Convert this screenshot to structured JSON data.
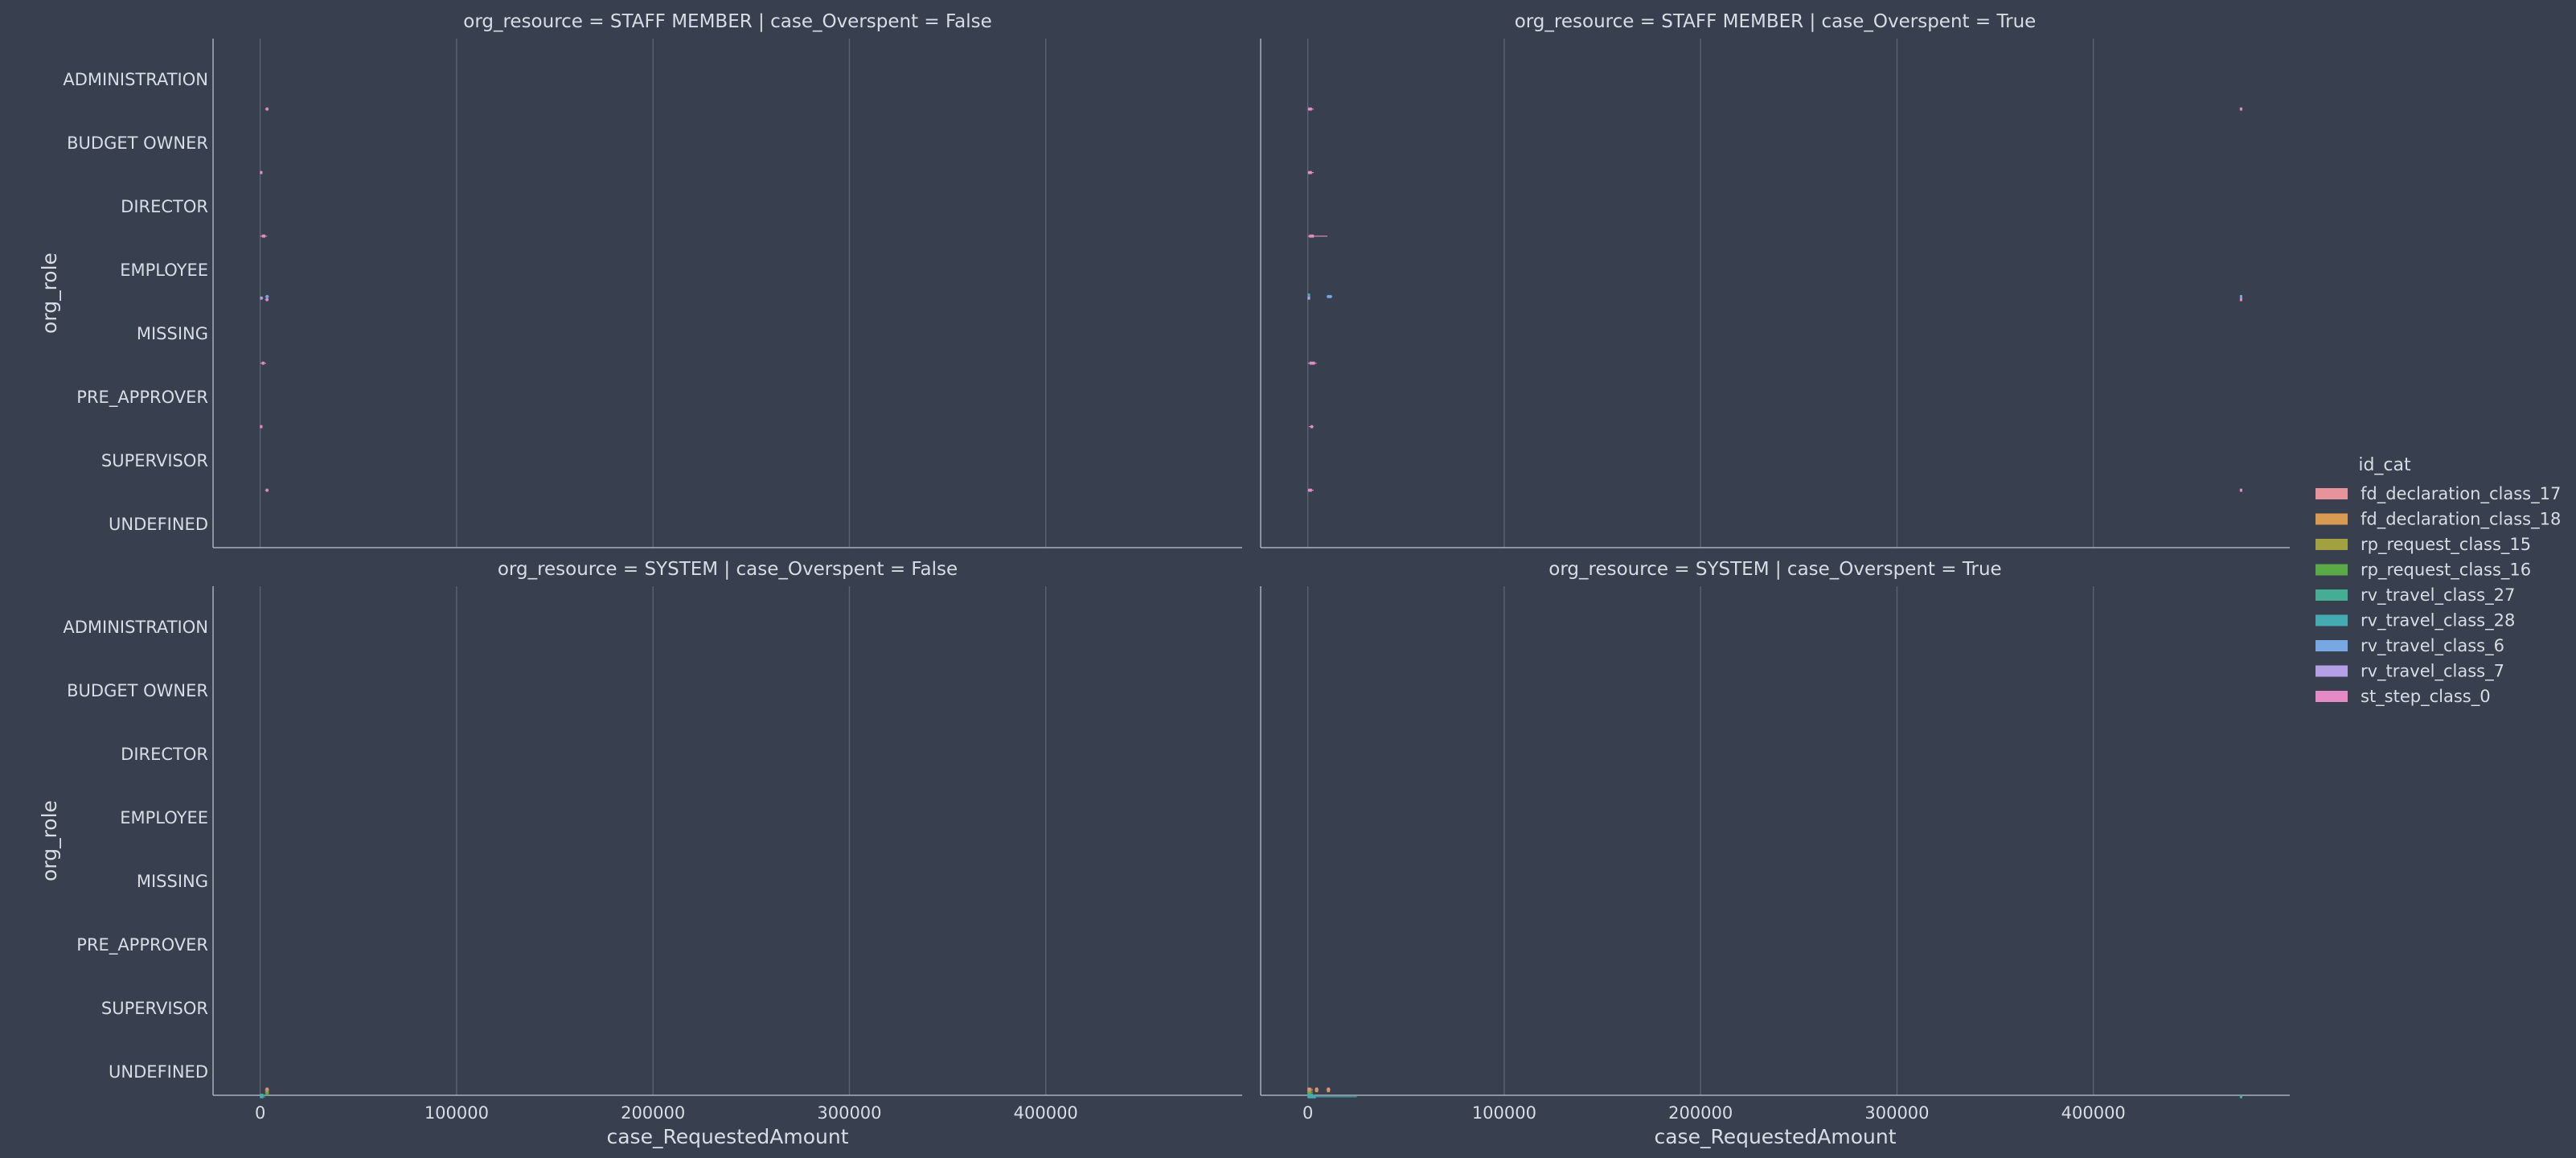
{
  "chart_data": {
    "type": "boxplot",
    "x_variable": "case_RequestedAmount",
    "y_variable": "org_role",
    "hue_variable": "id_cat",
    "xlim": [
      -24000,
      500000
    ],
    "xticks": [
      0,
      100000,
      200000,
      300000,
      400000
    ],
    "xtick_labels": [
      "0",
      "100000",
      "200000",
      "300000",
      "400000"
    ],
    "grid": "vertical",
    "roles": [
      "ADMINISTRATION",
      "BUDGET OWNER",
      "DIRECTOR",
      "EMPLOYEE",
      "MISSING",
      "PRE_APPROVER",
      "SUPERVISOR",
      "UNDEFINED"
    ],
    "legend": {
      "title": "id_cat",
      "placement": "right",
      "entries": [
        {
          "label": "fd_declaration_class_17",
          "color": "#e8929c"
        },
        {
          "label": "fd_declaration_class_18",
          "color": "#d99a52"
        },
        {
          "label": "rp_request_class_15",
          "color": "#a2a142"
        },
        {
          "label": "rp_request_class_16",
          "color": "#5aaa48"
        },
        {
          "label": "rv_travel_class_27",
          "color": "#45ad94"
        },
        {
          "label": "rv_travel_class_28",
          "color": "#44abb3"
        },
        {
          "label": "rv_travel_class_6",
          "color": "#77a8e3"
        },
        {
          "label": "rv_travel_class_7",
          "color": "#b3a0e6"
        },
        {
          "label": "st_step_class_0",
          "color": "#e48bc6"
        }
      ]
    },
    "panels": [
      {
        "title": "org_resource = STAFF MEMBER | case_Overspent = False",
        "row": 0,
        "col": 0,
        "ylabel": "org_role",
        "xlabel": "",
        "groups": [
          {
            "role": "ADMINISTRATION",
            "hue": "st_step_class_0",
            "box": [
              3000,
              3500,
              4000
            ],
            "whiskers": [
              2500,
              4300
            ]
          },
          {
            "role": "BUDGET OWNER",
            "hue": "st_step_class_0",
            "box": [
              400,
              500,
              600
            ],
            "whiskers": [
              300,
              700
            ]
          },
          {
            "role": "DIRECTOR",
            "hue": "st_step_class_0",
            "box": [
              1000,
              1500,
              2500
            ],
            "whiskers": [
              0,
              3500
            ]
          },
          {
            "role": "EMPLOYEE",
            "hue": "rv_travel_class_6",
            "box": [
              3000,
              3500,
              4000
            ],
            "whiskers": [
              2500,
              4500
            ]
          },
          {
            "role": "EMPLOYEE",
            "hue": "rv_travel_class_7",
            "box": [
              400,
              600,
              800
            ],
            "whiskers": [
              300,
              1500
            ]
          },
          {
            "role": "EMPLOYEE",
            "hue": "st_step_class_0",
            "box": [
              3000,
              3500,
              4000
            ],
            "whiskers": [
              2500,
              4300
            ]
          },
          {
            "role": "MISSING",
            "hue": "st_step_class_0",
            "box": [
              1000,
              1500,
              2000
            ],
            "whiskers": [
              0,
              3000
            ]
          },
          {
            "role": "PRE_APPROVER",
            "hue": "st_step_class_0",
            "box": [
              400,
              500,
              600
            ],
            "whiskers": [
              300,
              700
            ]
          },
          {
            "role": "SUPERVISOR",
            "hue": "st_step_class_0",
            "box": [
              3000,
              3500,
              4000
            ],
            "whiskers": [
              2500,
              4300
            ]
          }
        ]
      },
      {
        "title": "org_resource = STAFF MEMBER | case_Overspent = True",
        "row": 0,
        "col": 1,
        "ylabel": "",
        "xlabel": "",
        "groups": [
          {
            "role": "ADMINISTRATION",
            "hue": "st_step_class_0",
            "box": [
              300,
              800,
              2000
            ],
            "whiskers": [
              0,
              3000
            ]
          },
          {
            "role": "ADMINISTRATION",
            "hue": "st_step_class_0",
            "box": [
              475000,
              475200,
              475400
            ],
            "whiskers": [
              474800,
              475600
            ]
          },
          {
            "role": "BUDGET OWNER",
            "hue": "st_step_class_0",
            "box": [
              300,
              800,
              2000
            ],
            "whiskers": [
              0,
              3000
            ]
          },
          {
            "role": "DIRECTOR",
            "hue": "st_step_class_0",
            "box": [
              800,
              1500,
              3000
            ],
            "whiskers": [
              0,
              10000
            ]
          },
          {
            "role": "EMPLOYEE",
            "hue": "rv_travel_class_28",
            "box": [
              300,
              500,
              800
            ],
            "whiskers": [
              0,
              1200
            ]
          },
          {
            "role": "EMPLOYEE",
            "hue": "rv_travel_class_6",
            "box": [
              10000,
              11000,
              12000
            ],
            "whiskers": [
              9500,
              12500
            ]
          },
          {
            "role": "EMPLOYEE",
            "hue": "rv_travel_class_6",
            "box": [
              475000,
              475200,
              475400
            ],
            "whiskers": [
              474800,
              475600
            ]
          },
          {
            "role": "EMPLOYEE",
            "hue": "rv_travel_class_7",
            "box": [
              300,
              500,
              800
            ],
            "whiskers": [
              0,
              1200
            ]
          },
          {
            "role": "EMPLOYEE",
            "hue": "st_step_class_0",
            "box": [
              475000,
              475200,
              475400
            ],
            "whiskers": [
              474800,
              475600
            ]
          },
          {
            "role": "MISSING",
            "hue": "st_step_class_0",
            "box": [
              1000,
              2000,
              3500
            ],
            "whiskers": [
              0,
              4500
            ]
          },
          {
            "role": "PRE_APPROVER",
            "hue": "st_step_class_0",
            "box": [
              1500,
              2000,
              2500
            ],
            "whiskers": [
              500,
              3000
            ]
          },
          {
            "role": "SUPERVISOR",
            "hue": "st_step_class_0",
            "box": [
              300,
              800,
              2000
            ],
            "whiskers": [
              0,
              3000
            ]
          },
          {
            "role": "SUPERVISOR",
            "hue": "st_step_class_0",
            "box": [
              475000,
              475200,
              475400
            ],
            "whiskers": [
              474800,
              475600
            ]
          }
        ]
      },
      {
        "title": "org_resource = SYSTEM | case_Overspent = False",
        "row": 1,
        "col": 0,
        "ylabel": "org_role",
        "xlabel": "case_RequestedAmount",
        "groups": [
          {
            "role": "UNDEFINED",
            "hue": "fd_declaration_class_17",
            "box": [
              3000,
              3500,
              4000
            ],
            "whiskers": [
              2500,
              4500
            ]
          },
          {
            "role": "UNDEFINED",
            "hue": "fd_declaration_class_18",
            "box": [
              3000,
              3500,
              4000
            ],
            "whiskers": [
              2500,
              4500
            ]
          },
          {
            "role": "UNDEFINED",
            "hue": "rp_request_class_15",
            "box": [
              3000,
              3500,
              4000
            ],
            "whiskers": [
              2500,
              4500
            ]
          },
          {
            "role": "UNDEFINED",
            "hue": "rp_request_class_16",
            "box": [
              3000,
              3500,
              4000
            ],
            "whiskers": [
              2500,
              4500
            ]
          },
          {
            "role": "UNDEFINED",
            "hue": "rv_travel_class_27",
            "box": [
              0,
              500,
              1500
            ],
            "whiskers": [
              0,
              2500
            ]
          },
          {
            "role": "UNDEFINED",
            "hue": "rv_travel_class_28",
            "box": [
              0,
              500,
              1500
            ],
            "whiskers": [
              0,
              2500
            ]
          }
        ]
      },
      {
        "title": "org_resource = SYSTEM | case_Overspent = True",
        "row": 1,
        "col": 1,
        "ylabel": "",
        "xlabel": "case_RequestedAmount",
        "groups": [
          {
            "role": "UNDEFINED",
            "hue": "fd_declaration_class_17",
            "box": [
              0,
              500,
              1500
            ],
            "whiskers": [
              0,
              2500
            ]
          },
          {
            "role": "UNDEFINED",
            "hue": "fd_declaration_class_17",
            "box": [
              4000,
              4500,
              5000
            ],
            "whiskers": [
              3500,
              5500
            ]
          },
          {
            "role": "UNDEFINED",
            "hue": "fd_declaration_class_17",
            "box": [
              10000,
              10500,
              11000
            ],
            "whiskers": [
              9500,
              11500
            ]
          },
          {
            "role": "UNDEFINED",
            "hue": "fd_declaration_class_18",
            "box": [
              0,
              500,
              1500
            ],
            "whiskers": [
              0,
              2500
            ]
          },
          {
            "role": "UNDEFINED",
            "hue": "fd_declaration_class_18",
            "box": [
              4000,
              4500,
              5000
            ],
            "whiskers": [
              3500,
              5500
            ]
          },
          {
            "role": "UNDEFINED",
            "hue": "fd_declaration_class_18",
            "box": [
              10000,
              10500,
              11000
            ],
            "whiskers": [
              9500,
              11500
            ]
          },
          {
            "role": "UNDEFINED",
            "hue": "rp_request_class_15",
            "box": [
              0,
              500,
              1500
            ],
            "whiskers": [
              0,
              2500
            ]
          },
          {
            "role": "UNDEFINED",
            "hue": "rp_request_class_16",
            "box": [
              0,
              500,
              1500
            ],
            "whiskers": [
              0,
              2500
            ]
          },
          {
            "role": "UNDEFINED",
            "hue": "rv_travel_class_27",
            "box": [
              0,
              800,
              2500
            ],
            "whiskers": [
              0,
              4000
            ]
          },
          {
            "role": "UNDEFINED",
            "hue": "rv_travel_class_28",
            "box": [
              0,
              1500,
              4000
            ],
            "whiskers": [
              0,
              25000
            ]
          },
          {
            "role": "UNDEFINED",
            "hue": "rv_travel_class_28",
            "box": [
              475000,
              475200,
              475400
            ],
            "whiskers": [
              474800,
              475600
            ]
          }
        ]
      }
    ]
  }
}
